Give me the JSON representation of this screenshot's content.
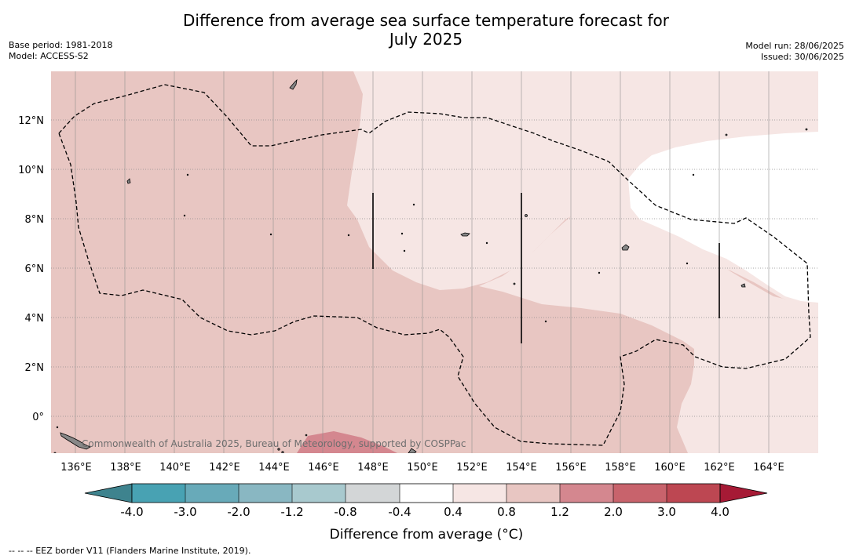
{
  "title_line1": "Difference from average sea surface temperature forecast for",
  "title_line2": "July 2025",
  "meta_left": {
    "base_period": "Base period: 1981-2018",
    "model": "Model: ACCESS-S2"
  },
  "meta_right": {
    "model_run": "Model run: 28/06/2025",
    "issued": "Issued: 30/06/2025"
  },
  "credit": "Commonwealth of Australia 2025, Bureau of Meteorology, supported by COSPPac",
  "footnote": "--  --  -- EEZ border V11 (Flanders Marine Institute, 2019).",
  "map": {
    "lon_ticks": [
      "136°E",
      "138°E",
      "140°E",
      "142°E",
      "144°E",
      "146°E",
      "148°E",
      "150°E",
      "152°E",
      "154°E",
      "156°E",
      "158°E",
      "160°E",
      "162°E",
      "164°E"
    ],
    "lat_ticks": [
      "12°N",
      "10°N",
      "8°N",
      "6°N",
      "4°N",
      "2°N",
      "0°"
    ],
    "lon_range": [
      135,
      166
    ],
    "lat_range": [
      -1.5,
      14
    ],
    "gridlines": true,
    "shading": [
      {
        "range": "0.8 to 1.2",
        "area": "western and southern region"
      },
      {
        "range": "0.4 to 0.8",
        "area": "north-east region"
      },
      {
        "range": "-0.4 to 0.4",
        "area": "north-east pocket near 158°E–166°E, 5°N–10°N"
      },
      {
        "range": "1.2 to 2.0",
        "area": "small patch near 146°E, 1°S"
      }
    ]
  },
  "colorbar": {
    "title": "Difference from average (°C)",
    "labels": [
      "-4.0",
      "-3.0",
      "-2.0",
      "-1.2",
      "-0.8",
      "-0.4",
      "0.4",
      "0.8",
      "1.2",
      "2.0",
      "3.0",
      "4.0"
    ],
    "colors": [
      "#48a2b3",
      "#68aab9",
      "#89b7c2",
      "#a8c9ce",
      "#d3d6d7",
      "#ffffff",
      "#f6e6e4",
      "#e8c6c2",
      "#d4878f",
      "#c8636c",
      "#bd4752"
    ],
    "under_color": "#3e838e",
    "over_color": "#a61a35"
  }
}
